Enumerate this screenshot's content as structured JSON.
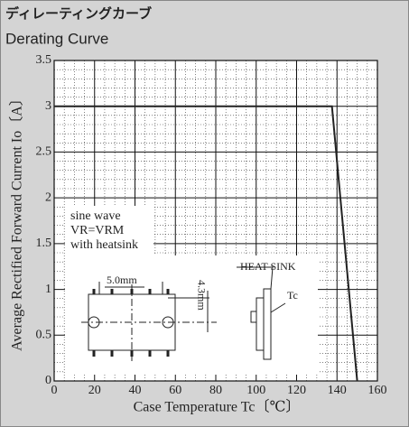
{
  "chart_data": {
    "type": "line",
    "title": "ディレーティングカーブ",
    "subtitle": "Derating Curve",
    "x_label": "Case Temperature  Tc〔℃〕",
    "y_label": "Average Rectified Forward Current  Io〔A〕",
    "x": [
      0,
      137.5,
      150
    ],
    "series": [
      {
        "name": "Derating",
        "color": "#222222",
        "values": [
          3,
          3,
          0
        ]
      }
    ],
    "xlim": [
      0,
      160
    ],
    "xticks": [
      0,
      20,
      40,
      60,
      80,
      100,
      120,
      140,
      160
    ],
    "ylim": [
      0,
      3.5
    ],
    "yticks": [
      0,
      0.5,
      1,
      1.5,
      2,
      2.5,
      3,
      3.5
    ],
    "grid": true,
    "annotations": [
      "sine wave",
      "VR=VRM",
      "with heatsink",
      "5.0mm",
      "4.3mm",
      "HEAT SINK",
      "Tc"
    ]
  }
}
